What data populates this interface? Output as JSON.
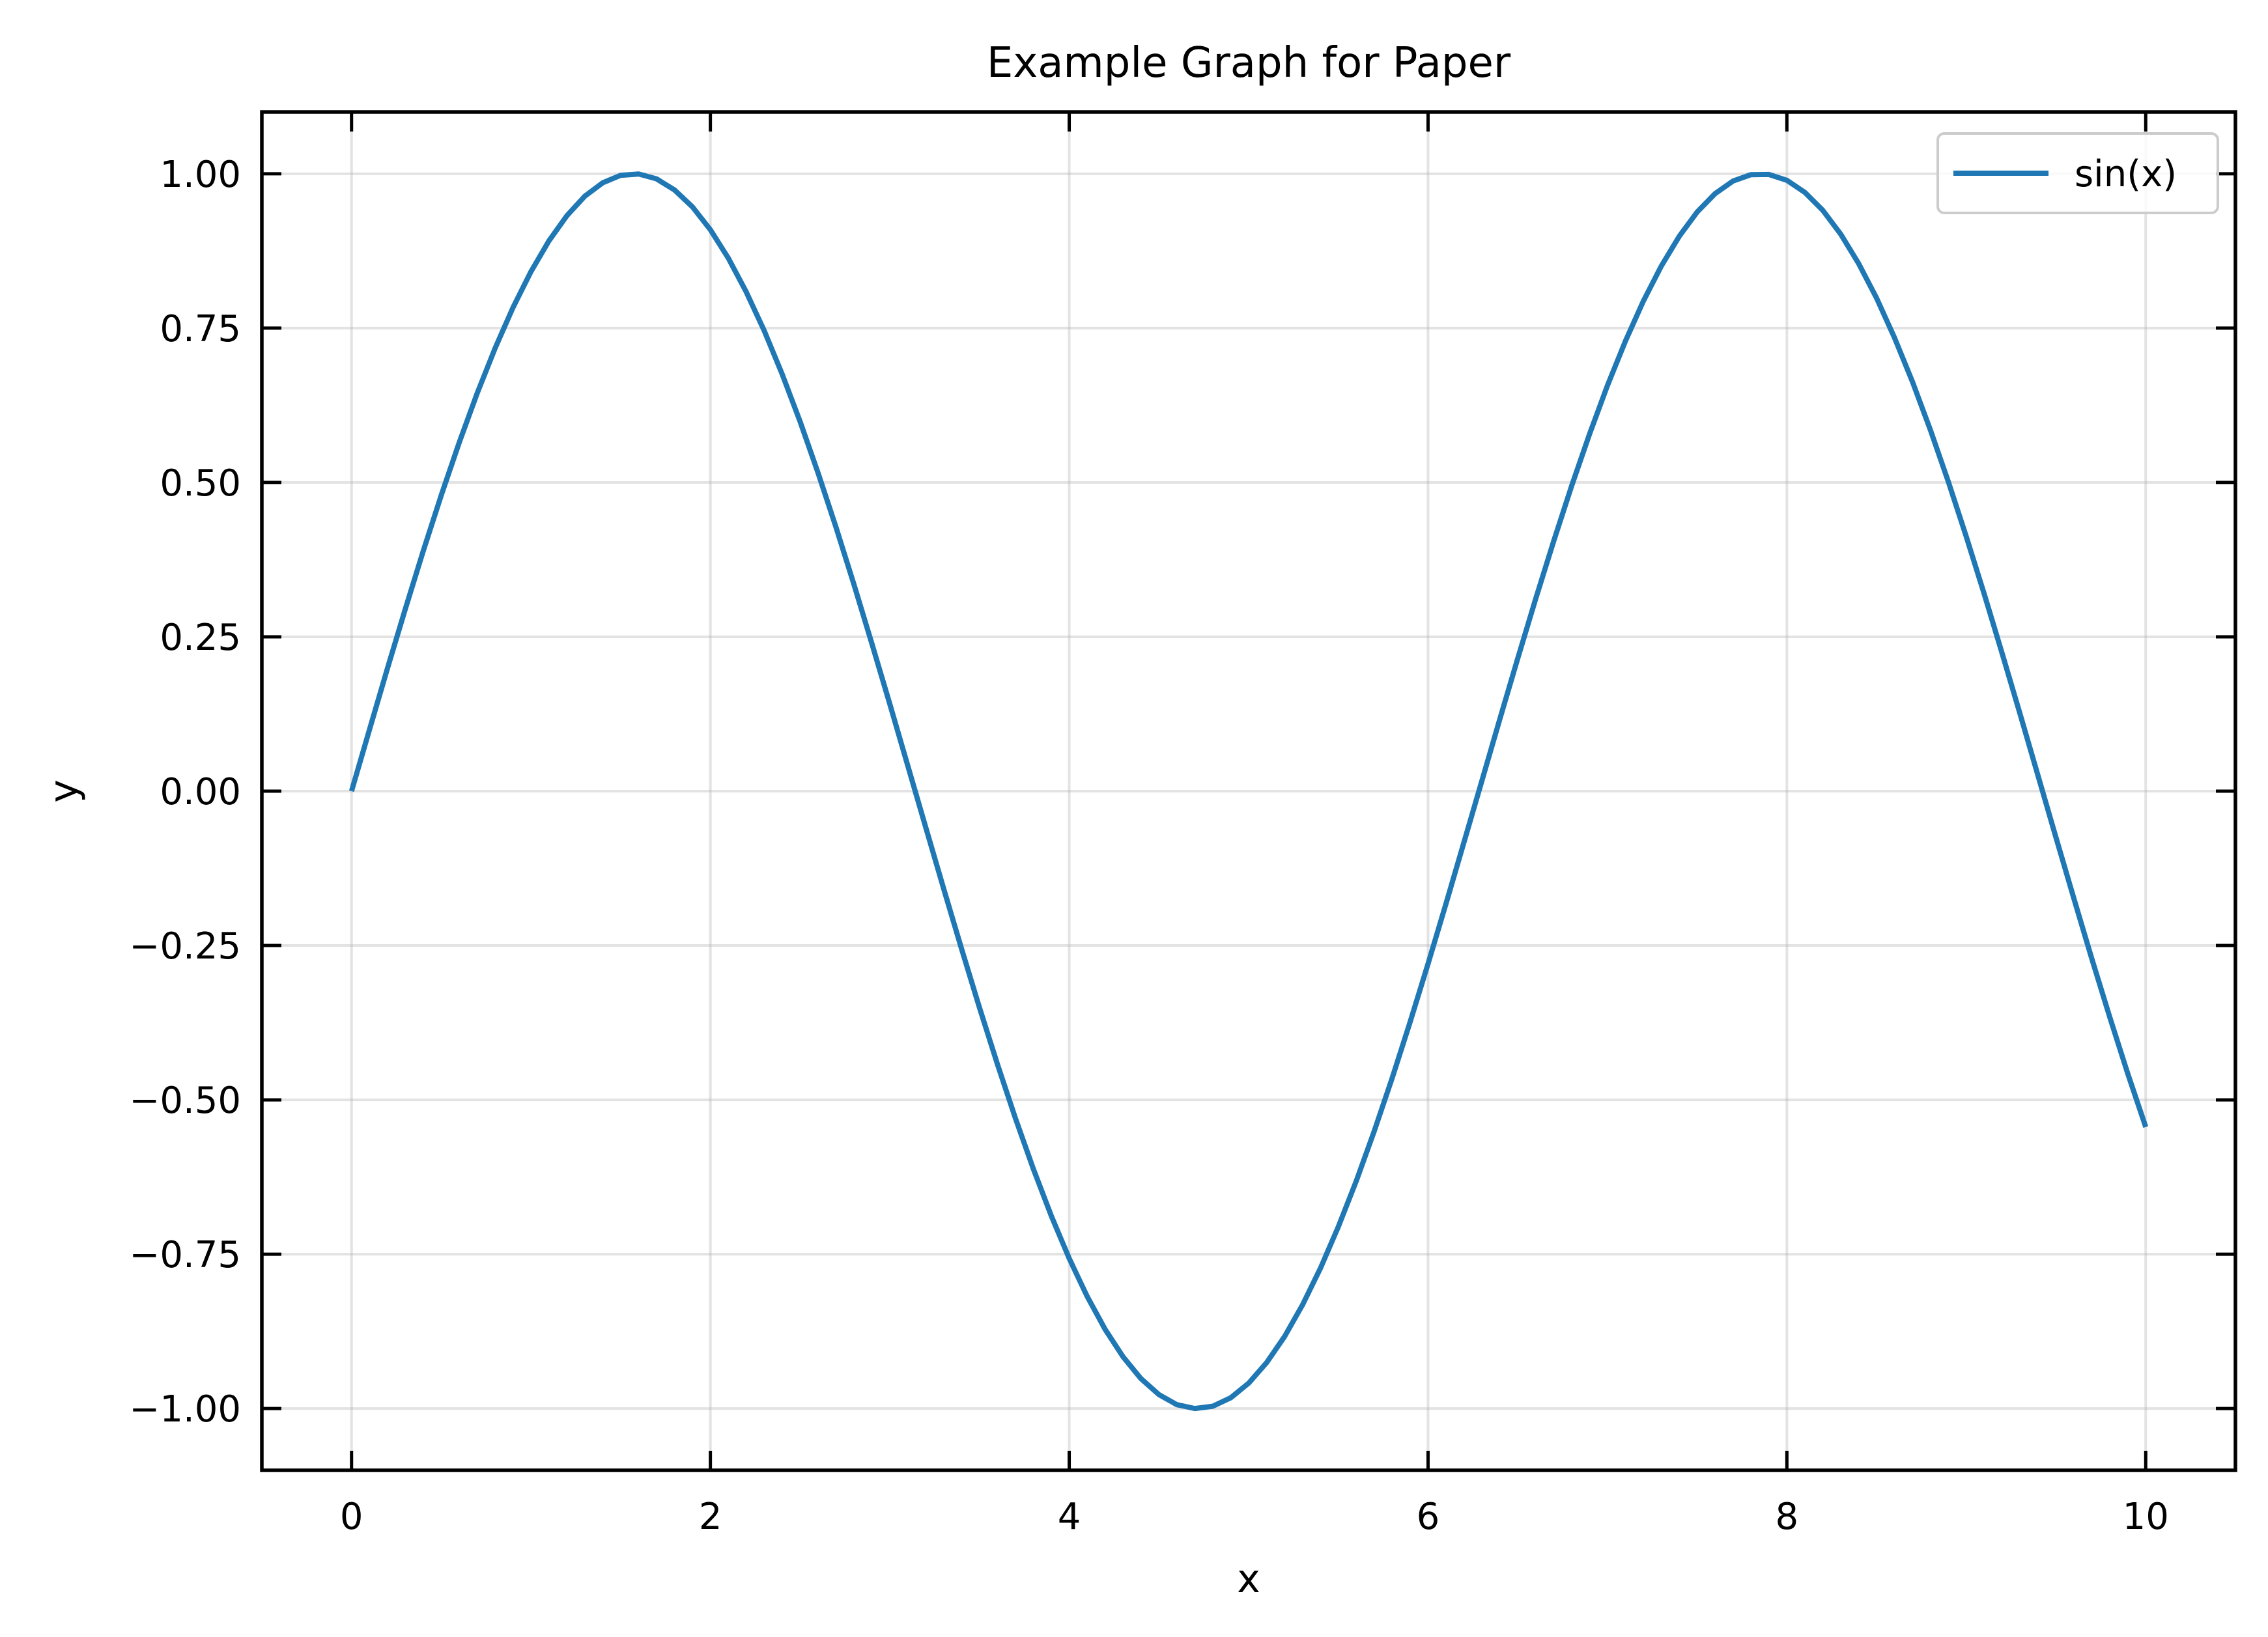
{
  "chart_data": {
    "type": "line",
    "title": "Example Graph for Paper",
    "xlabel": "x",
    "ylabel": "y",
    "xlim": [
      -0.5,
      10.5
    ],
    "ylim": [
      -1.1,
      1.1
    ],
    "xticks": [
      0,
      2,
      4,
      6,
      8,
      10
    ],
    "xtick_labels": [
      "0",
      "2",
      "4",
      "6",
      "8",
      "10"
    ],
    "yticks": [
      1.0,
      0.75,
      0.5,
      0.25,
      0.0,
      -0.25,
      -0.5,
      -0.75,
      -1.0
    ],
    "ytick_labels": [
      "1.00",
      "0.75",
      "0.50",
      "0.25",
      "0.00",
      "−0.25",
      "−0.50",
      "−0.75",
      "−1.00"
    ],
    "grid": true,
    "legend_position": "top-right",
    "series": [
      {
        "name": "sin(x)",
        "color": "#1f77b4",
        "x": [
          0,
          0.1,
          0.2,
          0.3,
          0.4,
          0.5,
          0.6,
          0.7,
          0.8,
          0.9,
          1.0,
          1.1,
          1.2,
          1.3,
          1.4,
          1.5,
          1.6,
          1.7,
          1.8,
          1.9,
          2.0,
          2.1,
          2.2,
          2.3,
          2.4,
          2.5,
          2.6,
          2.7,
          2.8,
          2.9,
          3.0,
          3.1,
          3.2,
          3.3,
          3.4,
          3.5,
          3.6,
          3.7,
          3.8,
          3.9,
          4.0,
          4.1,
          4.2,
          4.3,
          4.4,
          4.5,
          4.6,
          4.7,
          4.8,
          4.9,
          5.0,
          5.1,
          5.2,
          5.3,
          5.4,
          5.5,
          5.6,
          5.7,
          5.8,
          5.9,
          6.0,
          6.1,
          6.2,
          6.3,
          6.4,
          6.5,
          6.6,
          6.7,
          6.8,
          6.9,
          7.0,
          7.1,
          7.2,
          7.3,
          7.4,
          7.5,
          7.6,
          7.7,
          7.8,
          7.9,
          8.0,
          8.1,
          8.2,
          8.3,
          8.4,
          8.5,
          8.6,
          8.7,
          8.8,
          8.9,
          9.0,
          9.1,
          9.2,
          9.3,
          9.4,
          9.5,
          9.6,
          9.7,
          9.8,
          9.9,
          10.0
        ],
        "y": [
          0.0,
          0.0998,
          0.1987,
          0.2955,
          0.3894,
          0.4794,
          0.5646,
          0.6442,
          0.7174,
          0.7833,
          0.8415,
          0.8912,
          0.932,
          0.9636,
          0.9854,
          0.9975,
          0.9996,
          0.9917,
          0.9738,
          0.9463,
          0.9093,
          0.8632,
          0.8085,
          0.7457,
          0.6755,
          0.5985,
          0.5155,
          0.4274,
          0.335,
          0.2392,
          0.1411,
          0.0416,
          -0.0584,
          -0.1577,
          -0.2555,
          -0.3508,
          -0.4425,
          -0.5298,
          -0.6119,
          -0.6878,
          -0.7568,
          -0.8183,
          -0.8716,
          -0.9162,
          -0.9516,
          -0.9775,
          -0.9937,
          -0.9999,
          -0.9962,
          -0.9825,
          -0.9589,
          -0.9258,
          -0.8835,
          -0.8323,
          -0.7728,
          -0.7055,
          -0.6313,
          -0.5507,
          -0.4646,
          -0.3739,
          -0.2794,
          -0.1822,
          -0.0831,
          0.0168,
          0.1165,
          0.2151,
          0.3115,
          0.4048,
          0.4941,
          0.5784,
          0.657,
          0.729,
          0.7937,
          0.8504,
          0.8987,
          0.938,
          0.9679,
          0.9882,
          0.9985,
          0.9989,
          0.9894,
          0.9699,
          0.9407,
          0.9022,
          0.8546,
          0.7985,
          0.7344,
          0.663,
          0.5849,
          0.501,
          0.4121,
          0.319,
          0.2229,
          0.1245,
          0.0248,
          -0.0752,
          -0.1743,
          -0.2718,
          -0.3665,
          -0.4575,
          -0.544
        ]
      }
    ]
  }
}
